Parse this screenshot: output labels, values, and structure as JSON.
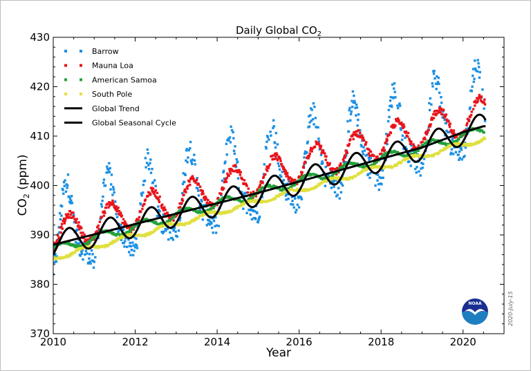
{
  "chart_data": {
    "type": "scatter",
    "title": "Daily Global CO",
    "title_subscript": "2",
    "xlabel": "Year",
    "ylabel_prefix": "CO",
    "ylabel_subscript": "2",
    "ylabel_suffix": " (ppm)",
    "xlim": [
      2010,
      2021
    ],
    "ylim": [
      370,
      430
    ],
    "x_ticks": [
      2010,
      2012,
      2014,
      2016,
      2018,
      2020
    ],
    "y_ticks": [
      370,
      380,
      390,
      400,
      410,
      420,
      430
    ],
    "legend_position": "top-left",
    "grid": false,
    "series": [
      {
        "name": "Barrow",
        "color": "#1a8fe3",
        "marker": "square",
        "baseline_2010": 389.6,
        "growth_per_year": 2.35,
        "seasonal_amplitude": 10.5,
        "peak_phase_year": 0.35,
        "x": [
          2010.0,
          2010.25,
          2010.4,
          2010.6,
          2010.7,
          2011.0,
          2011.35,
          2011.7,
          2012.0,
          2012.4,
          2012.7,
          2013.0,
          2013.4,
          2013.7,
          2014.0,
          2014.4,
          2014.7,
          2015.0,
          2015.4,
          2015.7,
          2016.0,
          2016.4,
          2016.7,
          2017.0,
          2017.4,
          2017.7,
          2018.0,
          2018.4,
          2018.7,
          2019.0,
          2019.4,
          2019.7,
          2020.0,
          2020.35,
          2020.5
        ],
        "y": [
          394,
          396,
          393,
          382,
          378,
          395,
          399,
          380,
          397,
          400,
          383,
          400,
          404,
          387,
          402,
          406,
          387,
          405,
          409,
          390,
          408,
          412,
          392,
          410,
          414,
          396,
          412,
          416,
          399,
          415,
          419,
          401,
          418,
          421,
          412
        ]
      },
      {
        "name": "Mauna Loa",
        "color": "#e8141a",
        "marker": "square",
        "baseline_2010": 389.9,
        "growth_per_year": 2.35,
        "seasonal_amplitude": 3.3,
        "peak_phase_year": 0.4,
        "x": [
          2010.0,
          2010.4,
          2010.75,
          2011.0,
          2011.4,
          2011.75,
          2012.0,
          2012.4,
          2012.75,
          2013.0,
          2013.4,
          2013.75,
          2014.0,
          2014.4,
          2014.75,
          2015.0,
          2015.4,
          2015.75,
          2016.0,
          2016.4,
          2016.75,
          2017.0,
          2017.4,
          2017.75,
          2018.0,
          2018.4,
          2018.75,
          2019.0,
          2019.4,
          2019.75,
          2020.0,
          2020.4,
          2020.5
        ],
        "y": [
          389,
          393,
          387,
          391,
          394,
          389,
          393,
          396,
          391,
          396,
          399,
          393,
          398,
          401,
          395,
          400,
          403,
          397,
          403,
          407,
          400,
          406,
          409,
          402,
          408,
          411,
          404,
          410,
          414,
          407,
          413,
          417,
          415
        ]
      },
      {
        "name": "American Samoa",
        "color": "#22a03a",
        "marker": "square",
        "baseline_2010": 387.0,
        "growth_per_year": 2.3,
        "seasonal_amplitude": 0.9,
        "peak_phase_year": 0.2,
        "x": [
          2010.0,
          2011.0,
          2012.0,
          2013.0,
          2014.0,
          2015.0,
          2016.0,
          2017.0,
          2018.0,
          2019.0,
          2020.0,
          2020.5
        ],
        "y": [
          387,
          389,
          391,
          393,
          395,
          397,
          399,
          402,
          404,
          406,
          409,
          410
        ]
      },
      {
        "name": "South Pole",
        "color": "#e0e040",
        "marker": "square",
        "baseline_2010": 385.3,
        "growth_per_year": 2.3,
        "seasonal_amplitude": 0.5,
        "peak_phase_year": 0.75,
        "x": [
          2010.0,
          2011.0,
          2012.0,
          2013.0,
          2014.0,
          2015.0,
          2016.0,
          2017.0,
          2018.0,
          2019.0,
          2020.0,
          2020.5
        ],
        "y": [
          385,
          387,
          389,
          391,
          393,
          395,
          397,
          400,
          402,
          404,
          407,
          409
        ]
      },
      {
        "name": "Global Trend",
        "color": "#000000",
        "marker": "line",
        "x": [
          2010.0,
          2011.0,
          2012.0,
          2013.0,
          2014.0,
          2015.0,
          2016.0,
          2017.0,
          2018.0,
          2019.0,
          2020.0,
          2020.5
        ],
        "y": [
          388.0,
          390.1,
          392.2,
          394.3,
          396.4,
          398.5,
          400.8,
          403.1,
          405.4,
          407.7,
          410.8,
          412.0
        ]
      },
      {
        "name": "Global Seasonal Cycle",
        "color": "#000000",
        "marker": "line",
        "amplitude": 2.6,
        "peak_phase_year": 0.38,
        "x": [
          2010.0,
          2010.38,
          2010.7,
          2011.0,
          2011.38,
          2011.7,
          2012.38,
          2012.7,
          2013.38,
          2013.7,
          2014.38,
          2014.7,
          2015.38,
          2015.7,
          2016.38,
          2016.7,
          2017.38,
          2017.7,
          2018.38,
          2018.7,
          2019.38,
          2019.7,
          2020.38,
          2020.5
        ],
        "y": [
          387.5,
          391.0,
          386.0,
          389.0,
          393.0,
          387.5,
          395.0,
          389.5,
          397.0,
          391.5,
          399.0,
          394.0,
          401.0,
          396.5,
          404.5,
          399.5,
          407.0,
          401.5,
          409.5,
          404.0,
          411.5,
          407.0,
          414.0,
          411.5
        ]
      }
    ]
  },
  "watermark": {
    "date_stamp": "2020-July-15",
    "logo_text": "NOAA",
    "logo_colors": {
      "top": "#1a2f8f",
      "bottom": "#1e7fc0",
      "gull": "#ffffff"
    }
  }
}
